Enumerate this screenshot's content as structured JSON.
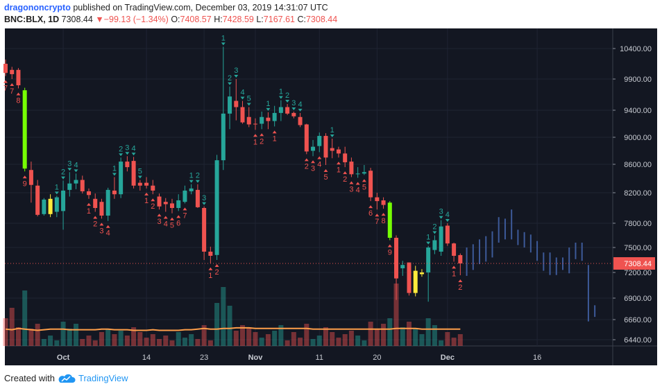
{
  "header": {
    "author": "dragononcrypto",
    "published": "published on TradingView.com, December 03, 2019 14:31:07 UTC",
    "symbol": "BNC:BLX, 1D",
    "price": "7308.44",
    "change_arrow": "▼",
    "change": "−99.13 (−1.34%)",
    "o_label": "O:",
    "o_value": "7408.57",
    "h_label": "H:",
    "h_value": "7428.59",
    "l_label": "L:",
    "l_value": "7167.61",
    "c_label": "C:",
    "c_value": "7308.44"
  },
  "footer": {
    "created_with": "Created with",
    "brand": "TradingView"
  },
  "colors": {
    "background": "#131722",
    "up": "#26a69a",
    "down": "#ef5350",
    "lime": "#76ff03",
    "yellow": "#ffeb3b",
    "projection": "#3d5a99",
    "ma": "#ff9f4a",
    "label_up": "#26a69a",
    "label_down": "#ef5350"
  },
  "chart_data": {
    "type": "candlestick",
    "x_ticks": [
      {
        "label": "Oct",
        "bar": 9,
        "bold": true
      },
      {
        "label": "14",
        "bar": 22
      },
      {
        "label": "23",
        "bar": 31
      },
      {
        "label": "Nov",
        "bar": 39,
        "bold": true
      },
      {
        "label": "11",
        "bar": 49
      },
      {
        "label": "20",
        "bar": 58
      },
      {
        "label": "Dec",
        "bar": 69,
        "bold": true
      },
      {
        "label": "16",
        "bar": 83
      }
    ],
    "y_ticks": [
      "10400.00",
      "9900.00",
      "9400.00",
      "9000.00",
      "8600.00",
      "8200.00",
      "7800.00",
      "7500.00",
      "7200.00",
      "6900.00",
      "6660.00",
      "6440.00"
    ],
    "last_price": "7308.44",
    "candles": [
      {
        "o": 10150,
        "h": 10220,
        "l": 9950,
        "c": 10000,
        "col": "down",
        "v": "L"
      },
      {
        "o": 9980,
        "h": 10100,
        "l": 9900,
        "c": 10050,
        "col": "down",
        "v": "L"
      },
      {
        "o": 10050,
        "h": 10080,
        "l": 9750,
        "c": 9800,
        "col": "down",
        "v": "M"
      },
      {
        "o": 9720,
        "h": 9760,
        "l": 8500,
        "c": 8540,
        "col": "lime",
        "v": "H"
      },
      {
        "o": 8520,
        "h": 8640,
        "l": 8070,
        "c": 8310,
        "col": "down",
        "v": "M"
      },
      {
        "o": 8300,
        "h": 8380,
        "l": 7890,
        "c": 7910,
        "col": "down",
        "v": "M"
      },
      {
        "o": 7920,
        "h": 8130,
        "l": 7900,
        "c": 8110,
        "col": "up",
        "v": "S"
      },
      {
        "o": 8120,
        "h": 8180,
        "l": 7880,
        "c": 7920,
        "col": "yellow",
        "v": "S"
      },
      {
        "o": 7950,
        "h": 8160,
        "l": 7880,
        "c": 8140,
        "col": "up",
        "v": "S"
      },
      {
        "o": 7960,
        "h": 8370,
        "l": 7720,
        "c": 8230,
        "col": "up",
        "v": "M"
      },
      {
        "o": 8240,
        "h": 8490,
        "l": 8150,
        "c": 8330,
        "col": "up",
        "v": "M"
      },
      {
        "o": 8330,
        "h": 8470,
        "l": 8250,
        "c": 8380,
        "col": "up",
        "v": "M"
      },
      {
        "o": 8380,
        "h": 8440,
        "l": 8190,
        "c": 8220,
        "col": "down",
        "v": "S"
      },
      {
        "o": 8220,
        "h": 8260,
        "l": 8120,
        "c": 8170,
        "col": "down",
        "v": "S"
      },
      {
        "o": 8120,
        "h": 8190,
        "l": 7950,
        "c": 8000,
        "col": "down",
        "v": "S"
      },
      {
        "o": 8080,
        "h": 8120,
        "l": 7860,
        "c": 7900,
        "col": "down",
        "v": "S"
      },
      {
        "o": 7900,
        "h": 8270,
        "l": 7830,
        "c": 8240,
        "col": "up",
        "v": "M"
      },
      {
        "o": 8230,
        "h": 8420,
        "l": 8120,
        "c": 8180,
        "col": "down",
        "v": "S"
      },
      {
        "o": 8180,
        "h": 8700,
        "l": 8130,
        "c": 8640,
        "col": "up",
        "v": "M"
      },
      {
        "o": 8640,
        "h": 8720,
        "l": 8500,
        "c": 8560,
        "col": "down",
        "v": "S"
      },
      {
        "o": 8650,
        "h": 8710,
        "l": 8260,
        "c": 8300,
        "col": "down",
        "v": "M"
      },
      {
        "o": 8300,
        "h": 8380,
        "l": 8230,
        "c": 8340,
        "col": "down",
        "v": "S"
      },
      {
        "o": 8340,
        "h": 8420,
        "l": 8260,
        "c": 8300,
        "col": "down",
        "v": "S"
      },
      {
        "o": 8300,
        "h": 8380,
        "l": 8180,
        "c": 8230,
        "col": "down",
        "v": "S"
      },
      {
        "o": 8150,
        "h": 8190,
        "l": 7980,
        "c": 8020,
        "col": "down",
        "v": "S"
      },
      {
        "o": 8080,
        "h": 8130,
        "l": 7950,
        "c": 8050,
        "col": "down",
        "v": "S"
      },
      {
        "o": 8060,
        "h": 8120,
        "l": 7930,
        "c": 8000,
        "col": "down",
        "v": "S"
      },
      {
        "o": 8000,
        "h": 8180,
        "l": 7960,
        "c": 8100,
        "col": "up",
        "v": "S"
      },
      {
        "o": 8080,
        "h": 8300,
        "l": 8060,
        "c": 8230,
        "col": "up",
        "v": "S"
      },
      {
        "o": 8220,
        "h": 8320,
        "l": 8180,
        "c": 8260,
        "col": "up",
        "v": "S"
      },
      {
        "o": 8240,
        "h": 8320,
        "l": 8000,
        "c": 8010,
        "col": "down",
        "v": "S"
      },
      {
        "o": 8000,
        "h": 8020,
        "l": 7350,
        "c": 7450,
        "col": "down",
        "v": "M"
      },
      {
        "o": 7450,
        "h": 7510,
        "l": 7310,
        "c": 7400,
        "col": "down",
        "v": "S"
      },
      {
        "o": 7410,
        "h": 8740,
        "l": 7350,
        "c": 8660,
        "col": "up",
        "v": "L"
      },
      {
        "o": 8660,
        "h": 10430,
        "l": 8520,
        "c": 9350,
        "col": "up",
        "v": "H"
      },
      {
        "o": 9350,
        "h": 9780,
        "l": 9120,
        "c": 9620,
        "col": "up",
        "v": "L"
      },
      {
        "o": 9550,
        "h": 9900,
        "l": 9250,
        "c": 9450,
        "col": "down",
        "v": "M"
      },
      {
        "o": 9450,
        "h": 9550,
        "l": 9200,
        "c": 9220,
        "col": "down",
        "v": "M"
      },
      {
        "o": 9300,
        "h": 9450,
        "l": 9150,
        "c": 9190,
        "col": "down",
        "v": "M"
      },
      {
        "o": 9190,
        "h": 9280,
        "l": 9110,
        "c": 9200,
        "col": "down",
        "v": "S"
      },
      {
        "o": 9200,
        "h": 9380,
        "l": 9120,
        "c": 9300,
        "col": "up",
        "v": "S"
      },
      {
        "o": 9290,
        "h": 9370,
        "l": 9120,
        "c": 9240,
        "col": "down",
        "v": "S"
      },
      {
        "o": 9240,
        "h": 9470,
        "l": 9160,
        "c": 9360,
        "col": "up",
        "v": "M"
      },
      {
        "o": 9360,
        "h": 9560,
        "l": 9240,
        "c": 9450,
        "col": "up",
        "v": "M"
      },
      {
        "o": 9450,
        "h": 9500,
        "l": 9330,
        "c": 9350,
        "col": "down",
        "v": "S"
      },
      {
        "o": 9360,
        "h": 9380,
        "l": 9280,
        "c": 9310,
        "col": "down",
        "v": "S"
      },
      {
        "o": 9300,
        "h": 9360,
        "l": 9150,
        "c": 9180,
        "col": "down",
        "v": "S"
      },
      {
        "o": 9190,
        "h": 9200,
        "l": 8750,
        "c": 8790,
        "col": "down",
        "v": "M"
      },
      {
        "o": 8800,
        "h": 8960,
        "l": 8720,
        "c": 8860,
        "col": "up",
        "v": "S"
      },
      {
        "o": 8870,
        "h": 9070,
        "l": 8780,
        "c": 9020,
        "col": "up",
        "v": "S"
      },
      {
        "o": 9020,
        "h": 9060,
        "l": 8590,
        "c": 8700,
        "col": "down",
        "v": "M"
      },
      {
        "o": 8800,
        "h": 8980,
        "l": 8690,
        "c": 8840,
        "col": "down",
        "v": "S"
      },
      {
        "o": 8820,
        "h": 8860,
        "l": 8700,
        "c": 8760,
        "col": "down",
        "v": "S"
      },
      {
        "o": 8760,
        "h": 8860,
        "l": 8560,
        "c": 8630,
        "col": "down",
        "v": "S"
      },
      {
        "o": 8640,
        "h": 8700,
        "l": 8420,
        "c": 8460,
        "col": "down",
        "v": "M"
      },
      {
        "o": 8460,
        "h": 8560,
        "l": 8410,
        "c": 8470,
        "col": "up",
        "v": "S"
      },
      {
        "o": 8470,
        "h": 8590,
        "l": 8450,
        "c": 8490,
        "col": "up",
        "v": "S"
      },
      {
        "o": 8510,
        "h": 8550,
        "l": 8090,
        "c": 8140,
        "col": "down",
        "v": "M"
      },
      {
        "o": 8140,
        "h": 8200,
        "l": 7980,
        "c": 8090,
        "col": "down",
        "v": "M"
      },
      {
        "o": 8100,
        "h": 8140,
        "l": 7990,
        "c": 8040,
        "col": "down",
        "v": "M"
      },
      {
        "o": 8070,
        "h": 8090,
        "l": 7590,
        "c": 7620,
        "col": "lime",
        "v": "L"
      },
      {
        "o": 7620,
        "h": 7650,
        "l": 6880,
        "c": 7130,
        "col": "down",
        "v": "H"
      },
      {
        "o": 7250,
        "h": 7340,
        "l": 7160,
        "c": 7290,
        "col": "up",
        "v": "M"
      },
      {
        "o": 7320,
        "h": 7320,
        "l": 6930,
        "c": 6960,
        "col": "down",
        "v": "M"
      },
      {
        "o": 6960,
        "h": 7280,
        "l": 6920,
        "c": 7220,
        "col": "yellow",
        "v": "M"
      },
      {
        "o": 7200,
        "h": 7240,
        "l": 7150,
        "c": 7180,
        "col": "yellow",
        "v": "S"
      },
      {
        "o": 7200,
        "h": 7520,
        "l": 6860,
        "c": 7500,
        "col": "up",
        "v": "L"
      },
      {
        "o": 7470,
        "h": 7650,
        "l": 7420,
        "c": 7590,
        "col": "up",
        "v": "M"
      },
      {
        "o": 7450,
        "h": 7840,
        "l": 7400,
        "c": 7760,
        "col": "up",
        "v": "S"
      },
      {
        "o": 7770,
        "h": 7800,
        "l": 7520,
        "c": 7550,
        "col": "down",
        "v": "S"
      },
      {
        "o": 7550,
        "h": 7560,
        "l": 7330,
        "c": 7400,
        "col": "down",
        "v": "S"
      },
      {
        "o": 7408.57,
        "h": 7428.59,
        "l": 7167.61,
        "c": 7308.44,
        "col": "down",
        "v": "S"
      }
    ],
    "projection": [
      {
        "bar": 72,
        "h": 7500,
        "l": 7160
      },
      {
        "bar": 73,
        "h": 7540,
        "l": 7230
      },
      {
        "bar": 74,
        "h": 7600,
        "l": 7300
      },
      {
        "bar": 75,
        "h": 7640,
        "l": 7330
      },
      {
        "bar": 76,
        "h": 7700,
        "l": 7380
      },
      {
        "bar": 77,
        "h": 7880,
        "l": 7560
      },
      {
        "bar": 78,
        "h": 7860,
        "l": 7600
      },
      {
        "bar": 79,
        "h": 7980,
        "l": 7600
      },
      {
        "bar": 80,
        "h": 7720,
        "l": 7530
      },
      {
        "bar": 81,
        "h": 7690,
        "l": 7500
      },
      {
        "bar": 82,
        "h": 7660,
        "l": 7440
      },
      {
        "bar": 83,
        "h": 7580,
        "l": 7340
      },
      {
        "bar": 84,
        "h": 7440,
        "l": 7220
      },
      {
        "bar": 85,
        "h": 7440,
        "l": 7170
      },
      {
        "bar": 86,
        "h": 7380,
        "l": 7170
      },
      {
        "bar": 87,
        "h": 7380,
        "l": 7230
      },
      {
        "bar": 88,
        "h": 7500,
        "l": 7190
      },
      {
        "bar": 89,
        "h": 7560,
        "l": 7360
      },
      {
        "bar": 90,
        "h": 7560,
        "l": 7340
      },
      {
        "bar": 91,
        "h": 7290,
        "l": 6640
      },
      {
        "bar": 92,
        "h": 6820,
        "l": 6690
      }
    ],
    "volume_ma": [
      2.7,
      2.6,
      2.8,
      2.7,
      2.6,
      2.5,
      2.6,
      2.7,
      2.7,
      2.7,
      2.6,
      2.6,
      2.6,
      2.6,
      2.6,
      2.7,
      2.7,
      2.6,
      2.6,
      2.6,
      2.5,
      2.5,
      2.5,
      2.6,
      2.5,
      2.5,
      2.5,
      2.5,
      2.6,
      2.6,
      2.7,
      2.8,
      2.7,
      2.7,
      2.8,
      2.8,
      2.9,
      2.9,
      2.9,
      2.8,
      2.8,
      2.8,
      2.8,
      2.8,
      2.8,
      2.8,
      2.8,
      2.8,
      2.7,
      2.7,
      2.7,
      2.7,
      2.7,
      2.7,
      2.7,
      2.7,
      2.7,
      2.7,
      2.7,
      2.7,
      2.7,
      2.8,
      2.8,
      2.8,
      2.8,
      2.7,
      2.7,
      2.7,
      2.7,
      2.7,
      2.7,
      2.7
    ],
    "td_labels": [
      {
        "bar": 0,
        "t": "7",
        "pos": "below",
        "col": "down"
      },
      {
        "bar": 1,
        "t": "7",
        "pos": "below",
        "col": "down"
      },
      {
        "bar": 2,
        "t": "8",
        "pos": "below",
        "col": "down"
      },
      {
        "bar": 3,
        "t": "9",
        "pos": "below",
        "col": "down"
      },
      {
        "bar": 8,
        "t": "1",
        "pos": "above",
        "col": "up"
      },
      {
        "bar": 9,
        "t": "2",
        "pos": "above",
        "col": "up"
      },
      {
        "bar": 10,
        "t": "3",
        "pos": "above",
        "col": "up"
      },
      {
        "bar": 11,
        "t": "4",
        "pos": "above",
        "col": "up"
      },
      {
        "bar": 13,
        "t": "1",
        "pos": "below",
        "col": "down"
      },
      {
        "bar": 14,
        "t": "2",
        "pos": "below",
        "col": "down"
      },
      {
        "bar": 15,
        "t": "3",
        "pos": "below",
        "col": "down"
      },
      {
        "bar": 16,
        "t": "4",
        "pos": "below",
        "col": "down"
      },
      {
        "bar": 17,
        "t": "1",
        "pos": "above",
        "col": "up"
      },
      {
        "bar": 18,
        "t": "2",
        "pos": "above",
        "col": "up"
      },
      {
        "bar": 19,
        "t": "3",
        "pos": "above",
        "col": "up"
      },
      {
        "bar": 20,
        "t": "4",
        "pos": "above",
        "col": "up"
      },
      {
        "bar": 21,
        "t": "5",
        "pos": "above",
        "col": "up"
      },
      {
        "bar": 22,
        "t": "1",
        "pos": "below",
        "col": "down"
      },
      {
        "bar": 23,
        "t": "2",
        "pos": "below",
        "col": "down"
      },
      {
        "bar": 24,
        "t": "3",
        "pos": "below",
        "col": "down"
      },
      {
        "bar": 25,
        "t": "4",
        "pos": "below",
        "col": "down"
      },
      {
        "bar": 26,
        "t": "5",
        "pos": "below",
        "col": "down"
      },
      {
        "bar": 27,
        "t": "6",
        "pos": "below",
        "col": "down"
      },
      {
        "bar": 28,
        "t": "7",
        "pos": "below",
        "col": "down"
      },
      {
        "bar": 29,
        "t": "1",
        "pos": "above",
        "col": "up"
      },
      {
        "bar": 30,
        "t": "2",
        "pos": "above",
        "col": "up"
      },
      {
        "bar": 31,
        "t": "3",
        "pos": "above",
        "col": "up"
      },
      {
        "bar": 32,
        "t": "1",
        "pos": "below",
        "col": "down"
      },
      {
        "bar": 33,
        "t": "2",
        "pos": "below",
        "col": "down"
      },
      {
        "bar": 34,
        "t": "1",
        "pos": "above",
        "col": "up"
      },
      {
        "bar": 35,
        "t": "2",
        "pos": "above",
        "col": "up"
      },
      {
        "bar": 36,
        "t": "3",
        "pos": "above",
        "col": "up"
      },
      {
        "bar": 37,
        "t": "4",
        "pos": "above",
        "col": "up"
      },
      {
        "bar": 38,
        "t": "5",
        "pos": "above",
        "col": "up"
      },
      {
        "bar": 39,
        "t": "1",
        "pos": "below",
        "col": "down"
      },
      {
        "bar": 40,
        "t": "2",
        "pos": "below",
        "col": "down"
      },
      {
        "bar": 41,
        "t": "1",
        "pos": "above",
        "col": "up"
      },
      {
        "bar": 42,
        "t": "1",
        "pos": "below",
        "col": "down"
      },
      {
        "bar": 43,
        "t": "1",
        "pos": "above",
        "col": "up"
      },
      {
        "bar": 44,
        "t": "2",
        "pos": "above",
        "col": "up"
      },
      {
        "bar": 45,
        "t": "3",
        "pos": "above",
        "col": "up"
      },
      {
        "bar": 46,
        "t": "4",
        "pos": "above",
        "col": "up"
      },
      {
        "bar": 47,
        "t": "2",
        "pos": "below",
        "col": "down"
      },
      {
        "bar": 48,
        "t": "3",
        "pos": "below",
        "col": "down"
      },
      {
        "bar": 49,
        "t": "4",
        "pos": "below",
        "col": "down"
      },
      {
        "bar": 50,
        "t": "5",
        "pos": "below",
        "col": "down"
      },
      {
        "bar": 51,
        "t": "1",
        "pos": "above",
        "col": "up"
      },
      {
        "bar": 52,
        "t": "1",
        "pos": "below",
        "col": "down"
      },
      {
        "bar": 53,
        "t": "2",
        "pos": "below",
        "col": "down"
      },
      {
        "bar": 54,
        "t": "3",
        "pos": "below",
        "col": "down"
      },
      {
        "bar": 55,
        "t": "4",
        "pos": "below",
        "col": "down"
      },
      {
        "bar": 56,
        "t": "5",
        "pos": "below",
        "col": "down"
      },
      {
        "bar": 57,
        "t": "6",
        "pos": "below",
        "col": "down"
      },
      {
        "bar": 58,
        "t": "7",
        "pos": "below",
        "col": "down"
      },
      {
        "bar": 59,
        "t": "8",
        "pos": "below",
        "col": "down"
      },
      {
        "bar": 60,
        "t": "9",
        "pos": "below",
        "col": "down"
      },
      {
        "bar": 66,
        "t": "1",
        "pos": "above",
        "col": "up"
      },
      {
        "bar": 67,
        "t": "2",
        "pos": "above",
        "col": "up"
      },
      {
        "bar": 68,
        "t": "3",
        "pos": "above",
        "col": "up"
      },
      {
        "bar": 69,
        "t": "4",
        "pos": "above",
        "col": "up"
      },
      {
        "bar": 70,
        "t": "1",
        "pos": "below",
        "col": "down"
      },
      {
        "bar": 71,
        "t": "2",
        "pos": "below",
        "col": "down"
      }
    ]
  }
}
